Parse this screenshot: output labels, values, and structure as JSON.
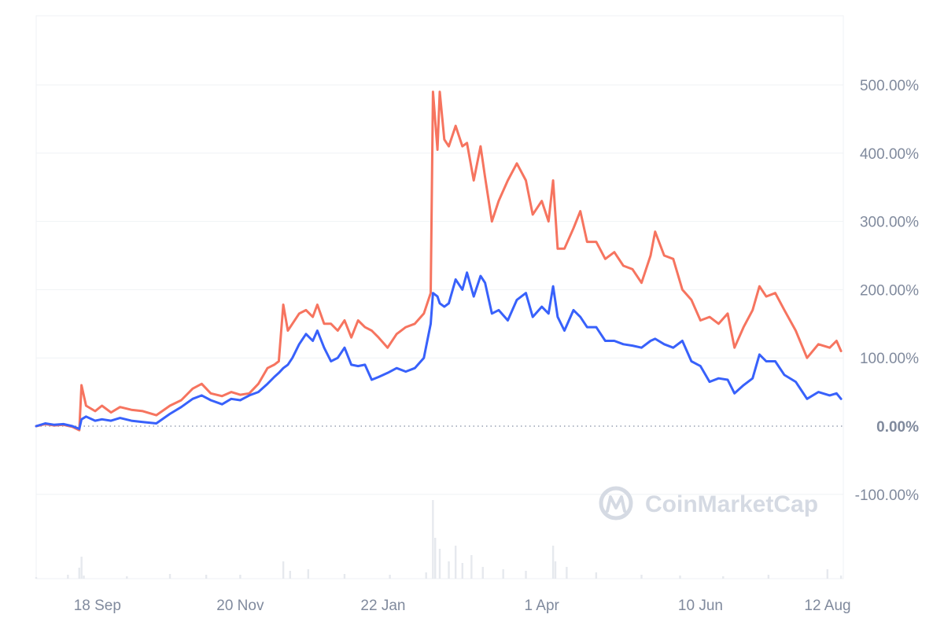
{
  "watermark": "CoinMarketCap",
  "colors": {
    "series_orange": "#f6745f",
    "series_blue": "#3861fb",
    "grid": "#eff2f5",
    "axis_text": "#808a9d",
    "volume": "#e6e9ee",
    "watermark": "#d5dae3"
  },
  "chart_data": {
    "type": "line",
    "y_unit": "%",
    "ylim": [
      -200,
      600
    ],
    "y_ticks": [
      -100,
      0,
      100,
      200,
      300,
      400,
      500
    ],
    "y_tick_labels": [
      "-100.00%",
      "0.00%",
      "100.00%",
      "200.00%",
      "300.00%",
      "400.00%",
      "500.00%"
    ],
    "x_range": [
      "2023-08-22",
      "2024-08-12"
    ],
    "x_ticks": [
      {
        "date": "2023-09-18",
        "label": "18 Sep"
      },
      {
        "date": "2023-11-20",
        "label": "20 Nov"
      },
      {
        "date": "2024-01-22",
        "label": "22 Jan"
      },
      {
        "date": "2024-04-01",
        "label": "1 Apr"
      },
      {
        "date": "2024-06-10",
        "label": "10 Jun"
      },
      {
        "date": "2024-08-12",
        "label": "12 Aug"
      }
    ],
    "grid": true,
    "zero_line": "dotted",
    "series": [
      {
        "color": "#f6745f",
        "points": [
          [
            "2023-08-22",
            0
          ],
          [
            "2023-08-26",
            3
          ],
          [
            "2023-08-30",
            1
          ],
          [
            "2023-09-03",
            2
          ],
          [
            "2023-09-07",
            -1
          ],
          [
            "2023-09-10",
            -6
          ],
          [
            "2023-09-11",
            60
          ],
          [
            "2023-09-13",
            30
          ],
          [
            "2023-09-17",
            22
          ],
          [
            "2023-09-20",
            30
          ],
          [
            "2023-09-24",
            20
          ],
          [
            "2023-09-28",
            28
          ],
          [
            "2023-10-03",
            24
          ],
          [
            "2023-10-08",
            22
          ],
          [
            "2023-10-14",
            16
          ],
          [
            "2023-10-20",
            30
          ],
          [
            "2023-10-25",
            38
          ],
          [
            "2023-10-30",
            55
          ],
          [
            "2023-11-03",
            62
          ],
          [
            "2023-11-07",
            48
          ],
          [
            "2023-11-12",
            44
          ],
          [
            "2023-11-16",
            50
          ],
          [
            "2023-11-20",
            46
          ],
          [
            "2023-11-24",
            48
          ],
          [
            "2023-11-28",
            62
          ],
          [
            "2023-12-02",
            85
          ],
          [
            "2023-12-05",
            90
          ],
          [
            "2023-12-07",
            95
          ],
          [
            "2023-12-09",
            178
          ],
          [
            "2023-12-11",
            140
          ],
          [
            "2023-12-13",
            150
          ],
          [
            "2023-12-16",
            165
          ],
          [
            "2023-12-19",
            170
          ],
          [
            "2023-12-22",
            160
          ],
          [
            "2023-12-24",
            178
          ],
          [
            "2023-12-27",
            150
          ],
          [
            "2023-12-30",
            150
          ],
          [
            "2024-01-02",
            140
          ],
          [
            "2024-01-05",
            155
          ],
          [
            "2024-01-08",
            130
          ],
          [
            "2024-01-11",
            155
          ],
          [
            "2024-01-14",
            145
          ],
          [
            "2024-01-17",
            140
          ],
          [
            "2024-01-20",
            130
          ],
          [
            "2024-01-24",
            115
          ],
          [
            "2024-01-28",
            135
          ],
          [
            "2024-02-01",
            145
          ],
          [
            "2024-02-05",
            150
          ],
          [
            "2024-02-09",
            165
          ],
          [
            "2024-02-12",
            195
          ],
          [
            "2024-02-13",
            490
          ],
          [
            "2024-02-15",
            405
          ],
          [
            "2024-02-16",
            490
          ],
          [
            "2024-02-18",
            420
          ],
          [
            "2024-02-20",
            410
          ],
          [
            "2024-02-23",
            440
          ],
          [
            "2024-02-26",
            410
          ],
          [
            "2024-02-28",
            415
          ],
          [
            "2024-03-02",
            360
          ],
          [
            "2024-03-05",
            410
          ],
          [
            "2024-03-07",
            365
          ],
          [
            "2024-03-10",
            300
          ],
          [
            "2024-03-13",
            330
          ],
          [
            "2024-03-17",
            360
          ],
          [
            "2024-03-21",
            385
          ],
          [
            "2024-03-25",
            360
          ],
          [
            "2024-03-28",
            310
          ],
          [
            "2024-04-01",
            330
          ],
          [
            "2024-04-04",
            300
          ],
          [
            "2024-04-06",
            360
          ],
          [
            "2024-04-08",
            260
          ],
          [
            "2024-04-11",
            260
          ],
          [
            "2024-04-15",
            290
          ],
          [
            "2024-04-18",
            315
          ],
          [
            "2024-04-21",
            270
          ],
          [
            "2024-04-25",
            270
          ],
          [
            "2024-04-29",
            245
          ],
          [
            "2024-05-03",
            255
          ],
          [
            "2024-05-07",
            235
          ],
          [
            "2024-05-11",
            230
          ],
          [
            "2024-05-15",
            210
          ],
          [
            "2024-05-19",
            250
          ],
          [
            "2024-05-21",
            285
          ],
          [
            "2024-05-25",
            250
          ],
          [
            "2024-05-29",
            245
          ],
          [
            "2024-06-02",
            200
          ],
          [
            "2024-06-06",
            185
          ],
          [
            "2024-06-10",
            155
          ],
          [
            "2024-06-14",
            160
          ],
          [
            "2024-06-18",
            150
          ],
          [
            "2024-06-22",
            165
          ],
          [
            "2024-06-25",
            115
          ],
          [
            "2024-06-29",
            145
          ],
          [
            "2024-07-03",
            170
          ],
          [
            "2024-07-06",
            205
          ],
          [
            "2024-07-09",
            190
          ],
          [
            "2024-07-13",
            195
          ],
          [
            "2024-07-17",
            170
          ],
          [
            "2024-07-22",
            140
          ],
          [
            "2024-07-27",
            100
          ],
          [
            "2024-08-01",
            120
          ],
          [
            "2024-08-06",
            115
          ],
          [
            "2024-08-09",
            125
          ],
          [
            "2024-08-11",
            110
          ]
        ]
      },
      {
        "color": "#3861fb",
        "points": [
          [
            "2023-08-22",
            0
          ],
          [
            "2023-08-26",
            4
          ],
          [
            "2023-08-30",
            2
          ],
          [
            "2023-09-03",
            3
          ],
          [
            "2023-09-07",
            0
          ],
          [
            "2023-09-10",
            -4
          ],
          [
            "2023-09-11",
            10
          ],
          [
            "2023-09-13",
            14
          ],
          [
            "2023-09-17",
            8
          ],
          [
            "2023-09-20",
            10
          ],
          [
            "2023-09-24",
            8
          ],
          [
            "2023-09-28",
            12
          ],
          [
            "2023-10-03",
            8
          ],
          [
            "2023-10-08",
            6
          ],
          [
            "2023-10-14",
            4
          ],
          [
            "2023-10-20",
            18
          ],
          [
            "2023-10-25",
            28
          ],
          [
            "2023-10-30",
            40
          ],
          [
            "2023-11-03",
            45
          ],
          [
            "2023-11-07",
            38
          ],
          [
            "2023-11-12",
            32
          ],
          [
            "2023-11-16",
            40
          ],
          [
            "2023-11-20",
            38
          ],
          [
            "2023-11-24",
            45
          ],
          [
            "2023-11-28",
            50
          ],
          [
            "2023-12-02",
            62
          ],
          [
            "2023-12-05",
            72
          ],
          [
            "2023-12-07",
            78
          ],
          [
            "2023-12-09",
            85
          ],
          [
            "2023-12-11",
            90
          ],
          [
            "2023-12-13",
            100
          ],
          [
            "2023-12-16",
            120
          ],
          [
            "2023-12-19",
            135
          ],
          [
            "2023-12-22",
            125
          ],
          [
            "2023-12-24",
            140
          ],
          [
            "2023-12-27",
            115
          ],
          [
            "2023-12-30",
            95
          ],
          [
            "2024-01-02",
            100
          ],
          [
            "2024-01-05",
            115
          ],
          [
            "2024-01-08",
            90
          ],
          [
            "2024-01-11",
            88
          ],
          [
            "2024-01-14",
            90
          ],
          [
            "2024-01-17",
            68
          ],
          [
            "2024-01-20",
            72
          ],
          [
            "2024-01-24",
            78
          ],
          [
            "2024-01-28",
            85
          ],
          [
            "2024-02-01",
            80
          ],
          [
            "2024-02-05",
            85
          ],
          [
            "2024-02-09",
            100
          ],
          [
            "2024-02-12",
            150
          ],
          [
            "2024-02-13",
            195
          ],
          [
            "2024-02-15",
            190
          ],
          [
            "2024-02-16",
            180
          ],
          [
            "2024-02-18",
            175
          ],
          [
            "2024-02-20",
            180
          ],
          [
            "2024-02-23",
            215
          ],
          [
            "2024-02-26",
            200
          ],
          [
            "2024-02-28",
            225
          ],
          [
            "2024-03-02",
            190
          ],
          [
            "2024-03-05",
            220
          ],
          [
            "2024-03-07",
            210
          ],
          [
            "2024-03-10",
            165
          ],
          [
            "2024-03-13",
            170
          ],
          [
            "2024-03-17",
            155
          ],
          [
            "2024-03-21",
            185
          ],
          [
            "2024-03-25",
            195
          ],
          [
            "2024-03-28",
            160
          ],
          [
            "2024-04-01",
            175
          ],
          [
            "2024-04-04",
            165
          ],
          [
            "2024-04-06",
            205
          ],
          [
            "2024-04-08",
            160
          ],
          [
            "2024-04-11",
            140
          ],
          [
            "2024-04-15",
            170
          ],
          [
            "2024-04-18",
            160
          ],
          [
            "2024-04-21",
            145
          ],
          [
            "2024-04-25",
            145
          ],
          [
            "2024-04-29",
            125
          ],
          [
            "2024-05-03",
            125
          ],
          [
            "2024-05-07",
            120
          ],
          [
            "2024-05-11",
            118
          ],
          [
            "2024-05-15",
            115
          ],
          [
            "2024-05-19",
            125
          ],
          [
            "2024-05-21",
            128
          ],
          [
            "2024-05-25",
            120
          ],
          [
            "2024-05-29",
            115
          ],
          [
            "2024-06-02",
            125
          ],
          [
            "2024-06-06",
            95
          ],
          [
            "2024-06-10",
            88
          ],
          [
            "2024-06-14",
            65
          ],
          [
            "2024-06-18",
            70
          ],
          [
            "2024-06-22",
            68
          ],
          [
            "2024-06-25",
            48
          ],
          [
            "2024-06-29",
            60
          ],
          [
            "2024-07-03",
            70
          ],
          [
            "2024-07-06",
            105
          ],
          [
            "2024-07-09",
            95
          ],
          [
            "2024-07-13",
            95
          ],
          [
            "2024-07-17",
            75
          ],
          [
            "2024-07-22",
            65
          ],
          [
            "2024-07-27",
            40
          ],
          [
            "2024-08-01",
            50
          ],
          [
            "2024-08-06",
            45
          ],
          [
            "2024-08-09",
            48
          ],
          [
            "2024-08-11",
            40
          ]
        ]
      }
    ],
    "volume_relative": [
      [
        "2023-08-22",
        0.02
      ],
      [
        "2023-09-05",
        0.05
      ],
      [
        "2023-09-10",
        0.14
      ],
      [
        "2023-09-11",
        0.28
      ],
      [
        "2023-09-12",
        0.04
      ],
      [
        "2023-10-01",
        0.03
      ],
      [
        "2023-10-20",
        0.06
      ],
      [
        "2023-11-05",
        0.05
      ],
      [
        "2023-11-20",
        0.05
      ],
      [
        "2023-12-09",
        0.22
      ],
      [
        "2023-12-12",
        0.1
      ],
      [
        "2023-12-20",
        0.12
      ],
      [
        "2024-01-05",
        0.06
      ],
      [
        "2024-01-25",
        0.05
      ],
      [
        "2024-02-10",
        0.08
      ],
      [
        "2024-02-13",
        1.0
      ],
      [
        "2024-02-14",
        0.52
      ],
      [
        "2024-02-16",
        0.38
      ],
      [
        "2024-02-20",
        0.22
      ],
      [
        "2024-02-23",
        0.42
      ],
      [
        "2024-02-26",
        0.2
      ],
      [
        "2024-03-01",
        0.3
      ],
      [
        "2024-03-06",
        0.15
      ],
      [
        "2024-03-15",
        0.12
      ],
      [
        "2024-03-25",
        0.1
      ],
      [
        "2024-04-06",
        0.42
      ],
      [
        "2024-04-07",
        0.22
      ],
      [
        "2024-04-12",
        0.15
      ],
      [
        "2024-04-25",
        0.08
      ],
      [
        "2024-05-15",
        0.05
      ],
      [
        "2024-06-01",
        0.04
      ],
      [
        "2024-06-20",
        0.03
      ],
      [
        "2024-07-10",
        0.05
      ],
      [
        "2024-08-05",
        0.12
      ],
      [
        "2024-08-11",
        0.04
      ]
    ]
  }
}
